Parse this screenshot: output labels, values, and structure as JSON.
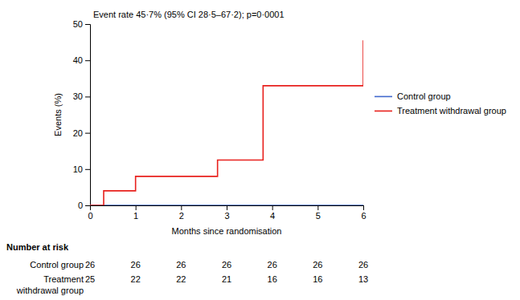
{
  "chart_data": {
    "type": "line",
    "annotation": "Event rate 45·7% (95% CI 28·5–67·2); p=0·0001",
    "xlabel": "Months since randomisation",
    "ylabel": "Events (%)",
    "xlim": [
      0,
      6
    ],
    "ylim": [
      0,
      50
    ],
    "xticks": [
      0,
      1,
      2,
      3,
      4,
      5,
      6
    ],
    "yticks": [
      0,
      10,
      20,
      30,
      40,
      50
    ],
    "legend": "right",
    "series": [
      {
        "name": "Control group",
        "color": "#4169cd",
        "x": [
          0,
          6
        ],
        "values": [
          0,
          0
        ]
      },
      {
        "name": "Treatment withdrawal group",
        "color": "#e8211d",
        "x": [
          0,
          0.3,
          0.3,
          1.0,
          1.0,
          2.8,
          2.8,
          3.8,
          3.8,
          6.0,
          6.0
        ],
        "values": [
          0,
          0,
          4.0,
          4.0,
          8.0,
          8.0,
          12.5,
          12.5,
          33.0,
          33.0,
          45.5
        ]
      }
    ],
    "number_at_risk_title": "Number at risk",
    "risk_table": {
      "x": [
        0,
        1,
        2,
        3,
        4,
        5,
        6
      ],
      "rows": [
        {
          "label": [
            "Control group"
          ],
          "values": [
            26,
            26,
            26,
            26,
            26,
            26,
            26
          ]
        },
        {
          "label": [
            "Treatment",
            "withdrawal group"
          ],
          "values": [
            25,
            22,
            22,
            21,
            16,
            16,
            13
          ]
        }
      ]
    }
  }
}
